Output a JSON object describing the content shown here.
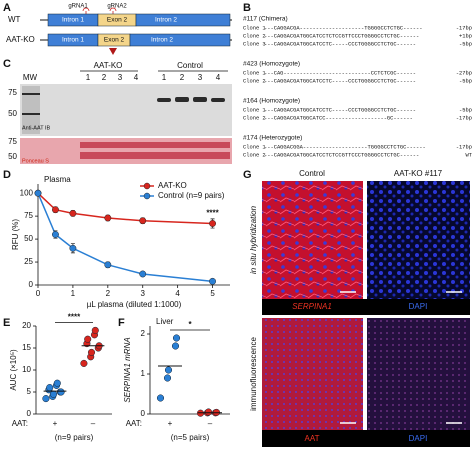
{
  "panel_a": {
    "label": "A",
    "grna1": "gRNA1",
    "grna2": "gRNA2",
    "rows": [
      {
        "name": "WT",
        "intron1": "Intron 1",
        "exon2": "Exon 2",
        "intron2": "Intron 2"
      },
      {
        "name": "AAT-KO",
        "intron1": "Intron 1",
        "exon2": "Exon 2",
        "intron2": "Intron 2"
      }
    ]
  },
  "panel_b": {
    "label": "B",
    "groups": [
      {
        "title": "#117 (Chimera)",
        "clones": [
          {
            "name": "Clone 1",
            "sequence": "---CAGGACGA--------------------TGGGGCCTCTGC------",
            "change": "-17bp"
          },
          {
            "name": "Clone 2",
            "sequence": "---CAGGACGATGGCATCCTCTCCGTTCCCTGGGGCCTCTGC------",
            "change": "+1bp"
          },
          {
            "name": "Clone 3",
            "sequence": "---CAGGACGATGGCATCCTC-----CCCTGGGGCCTCTGC------",
            "change": "-5bp"
          }
        ]
      },
      {
        "title": "#423 (Homozygote)",
        "clones": [
          {
            "name": "Clone 1",
            "sequence": "---CAG---------------------------CCTCTCGC------",
            "change": "-27bp"
          },
          {
            "name": "Clone 2",
            "sequence": "---CAGGACGATGGCATCCTC-----CCCTGGGGCCTCTGC------",
            "change": "-5bp"
          }
        ]
      },
      {
        "title": "#164 (Homozygote)",
        "clones": [
          {
            "name": "Clone 1",
            "sequence": "---CAGGACGATGGCATCCTC-----CCCTGGGGCCTCTGC------",
            "change": "-5bp"
          },
          {
            "name": "Clone 2",
            "sequence": "---CAGGACGATGGCATCC-------------------GC------",
            "change": "-17bp"
          }
        ]
      },
      {
        "title": "#174 (Heterozygote)",
        "clones": [
          {
            "name": "Clone 1",
            "sequence": "---CAGGACGGA--------------------TGGGGCCTCTGC------",
            "change": "-17bp"
          },
          {
            "name": "Clone 2",
            "sequence": "---CAGGACGATGGCATCCTCTCCGTTCCCTGGGGCCTCTGC------",
            "change": "WT"
          }
        ]
      }
    ]
  },
  "panel_c": {
    "label": "C",
    "mw": "MW",
    "groups": [
      "AAT-KO",
      "Control"
    ],
    "lanes": [
      "1",
      "2",
      "3",
      "4"
    ],
    "blot": "Anti-AAT IB",
    "stain": "Ponceau S",
    "markers": [
      "75",
      "50",
      "75",
      "50"
    ]
  },
  "panel_g": {
    "label": "G",
    "columns": [
      "Control",
      "AAT-KO #117"
    ],
    "rows": [
      {
        "name": "in situ hybridization",
        "left": "SERPINA1",
        "right": "DAPI"
      },
      {
        "name": "immunofluorescence",
        "left": "AAT",
        "right": "DAPI"
      }
    ]
  },
  "chart_data": [
    {
      "type": "line",
      "label": "D",
      "title": "Plasma",
      "x_label": "µL plasma (diluted 1:1000)",
      "y_label": "RFU (%)",
      "xlim": [
        0,
        5.5
      ],
      "xticks": [
        0,
        1,
        2,
        3,
        4,
        5
      ],
      "ylim": [
        0,
        110
      ],
      "yticks": [
        0,
        25,
        50,
        75,
        100
      ],
      "legend": "upper right",
      "annotation": "****",
      "x": [
        0,
        0.5,
        1,
        2,
        3,
        5
      ],
      "series": [
        {
          "name": "AAT-KO",
          "color": "#d7261e",
          "values": [
            100,
            82,
            78,
            73,
            70,
            67
          ],
          "errors": [
            0,
            3,
            3,
            3,
            3,
            5
          ]
        },
        {
          "name": "Control (n=9 pairs)",
          "color": "#2a7fd4",
          "values": [
            100,
            55,
            40,
            22,
            12,
            4
          ],
          "errors": [
            0,
            4,
            5,
            3,
            2,
            1
          ]
        }
      ]
    },
    {
      "type": "strip",
      "label": "E",
      "y_label": "AUC (×10⁵)",
      "ylim": [
        0,
        20
      ],
      "yticks": [
        0,
        5,
        10,
        15,
        20
      ],
      "group_label": "AAT:",
      "categories": [
        "+",
        "–"
      ],
      "colors": [
        "#2a7fd4",
        "#d7261e"
      ],
      "n_label": "(n=9 pairs)",
      "annotation": "****",
      "values": [
        [
          3.5,
          4,
          4.5,
          5,
          5,
          5.5,
          6,
          6.5,
          7
        ],
        [
          11.5,
          13,
          14,
          15,
          15.5,
          16,
          17,
          18,
          19
        ]
      ],
      "means": [
        5.2,
        15.5
      ]
    },
    {
      "type": "strip",
      "label": "F",
      "title": "Liver",
      "y_label": "SERPINA1 mRNA",
      "ylim": [
        0,
        2.2
      ],
      "yticks": [
        0,
        1,
        2
      ],
      "group_label": "AAT:",
      "categories": [
        "+",
        "–"
      ],
      "colors": [
        "#2a7fd4",
        "#d7261e"
      ],
      "n_label": "(n=5 pairs)",
      "annotation": "*",
      "values": [
        [
          0.4,
          0.9,
          1.1,
          1.7,
          1.9
        ],
        [
          0.02,
          0.03,
          0.05,
          0.03,
          0.04
        ]
      ],
      "means": [
        1.2,
        0.03
      ]
    }
  ]
}
